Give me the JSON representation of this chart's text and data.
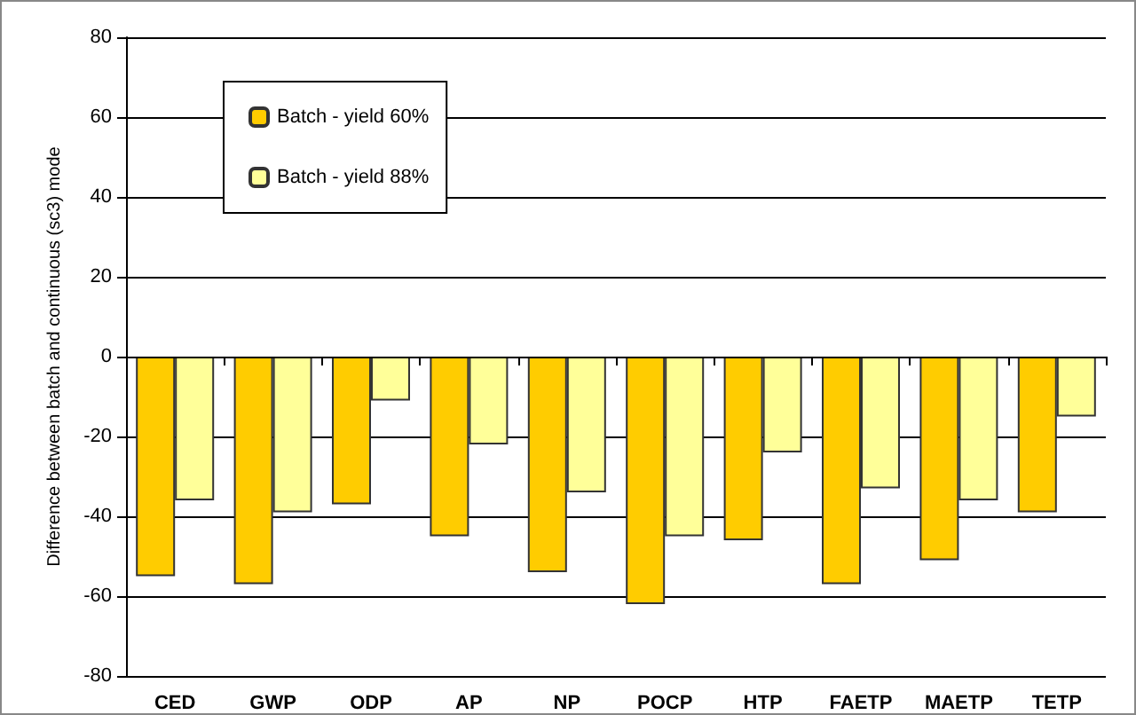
{
  "chart_data": {
    "type": "bar",
    "ylabel": "Difference between batch and continuous (sc3) mode",
    "categories": [
      "CED",
      "GWP",
      "ODP",
      "AP",
      "NP",
      "POCP",
      "HTP",
      "FAETP",
      "MAETP",
      "TETP"
    ],
    "series": [
      {
        "name": "Batch - yield 60%",
        "color": "#ffcc00",
        "values": [
          -55,
          -57,
          -37,
          -45,
          -54,
          -62,
          -46,
          -57,
          -51,
          -39
        ]
      },
      {
        "name": "Batch - yield 88%",
        "color": "#ffff99",
        "values": [
          -36,
          -39,
          -11,
          -22,
          -34,
          -45,
          -24,
          -33,
          -36,
          -15
        ]
      }
    ],
    "ylim": [
      -80,
      80
    ],
    "yticks": [
      -80,
      -60,
      -40,
      -20,
      0,
      20,
      40,
      60,
      80
    ],
    "grid": "y",
    "legend": "top left"
  }
}
